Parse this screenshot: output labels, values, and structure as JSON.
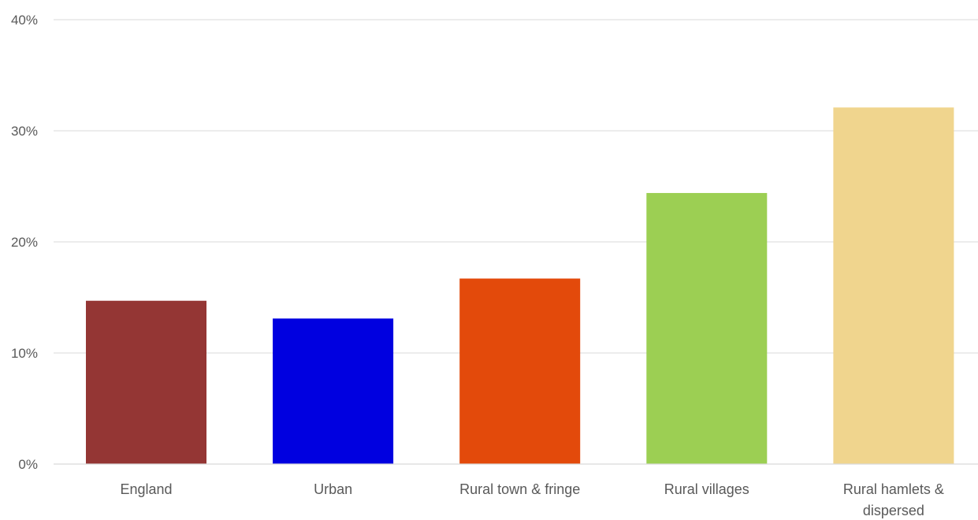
{
  "chart_data": {
    "type": "bar",
    "title": "",
    "xlabel": "",
    "ylabel": "",
    "categories": [
      [
        "England"
      ],
      [
        "Urban"
      ],
      [
        "Rural town & fringe"
      ],
      [
        "Rural villages"
      ],
      [
        "Rural hamlets &",
        "dispersed"
      ]
    ],
    "values": [
      14.7,
      13.1,
      16.7,
      24.4,
      32.1
    ],
    "colors": [
      "#943634",
      "#0000e0",
      "#e34a0b",
      "#9ccf53",
      "#f0d58e"
    ],
    "ylim": [
      0,
      40
    ],
    "yticks": [
      0,
      10,
      20,
      30,
      40
    ],
    "ytick_labels": [
      "0%",
      "10%",
      "20%",
      "30%",
      "40%"
    ],
    "grid": true,
    "legend": "none"
  }
}
